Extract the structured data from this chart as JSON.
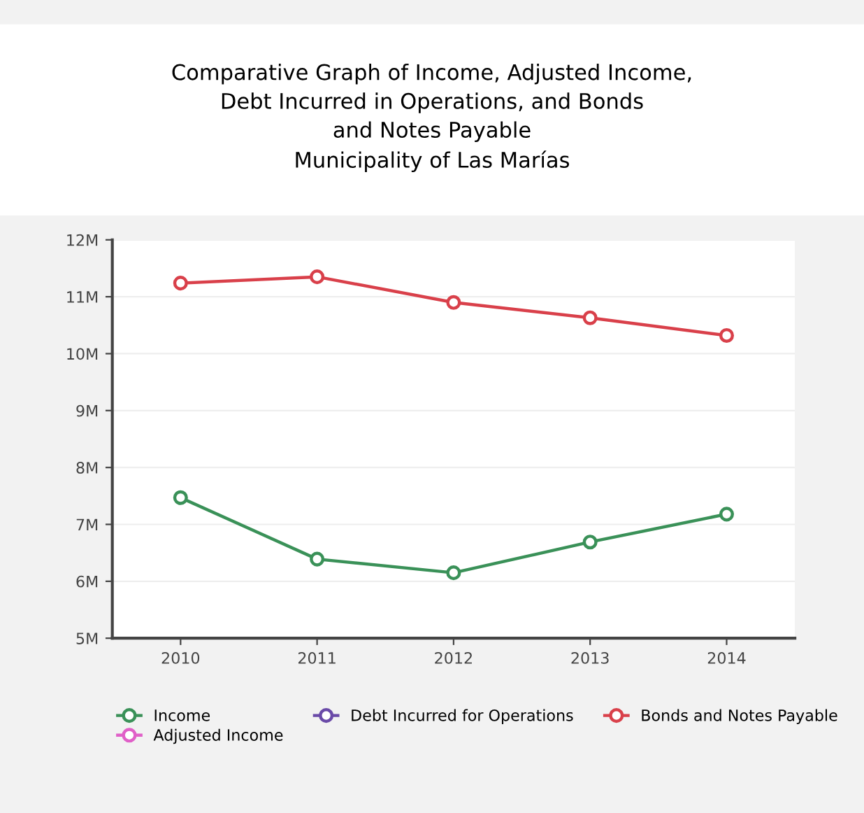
{
  "chart_data": {
    "type": "line",
    "title": "Comparative Graph of Income, Adjusted Income,\nDebt Incurred in Operations, and Bonds\nand Notes Payable\nMunicipality of Las Marías",
    "categories": [
      "2010",
      "2011",
      "2012",
      "2013",
      "2014"
    ],
    "series": [
      {
        "name": "Income",
        "color": "#3a9158",
        "values": [
          7.47,
          6.39,
          6.15,
          6.69,
          7.18
        ]
      },
      {
        "name": "Adjusted Income",
        "color": "#e060c8",
        "values": [
          null,
          null,
          null,
          null,
          null
        ]
      },
      {
        "name": "Debt Incurred for Operations",
        "color": "#6a4aa8",
        "values": [
          null,
          null,
          null,
          null,
          null
        ]
      },
      {
        "name": "Bonds and Notes Payable",
        "color": "#d9404a",
        "values": [
          11.24,
          11.35,
          10.9,
          10.63,
          10.32
        ]
      }
    ],
    "ylim": [
      5,
      12
    ],
    "yticks": [
      {
        "value": 5,
        "label": "5M"
      },
      {
        "value": 6,
        "label": "6M"
      },
      {
        "value": 7,
        "label": "7M"
      },
      {
        "value": 8,
        "label": "8M"
      },
      {
        "value": 9,
        "label": "9M"
      },
      {
        "value": 10,
        "label": "10M"
      },
      {
        "value": 11,
        "label": "11M"
      },
      {
        "value": 12,
        "label": "12M"
      }
    ],
    "grid": "y",
    "legend": "bottom",
    "marker": "circle",
    "line_style": "solid"
  }
}
